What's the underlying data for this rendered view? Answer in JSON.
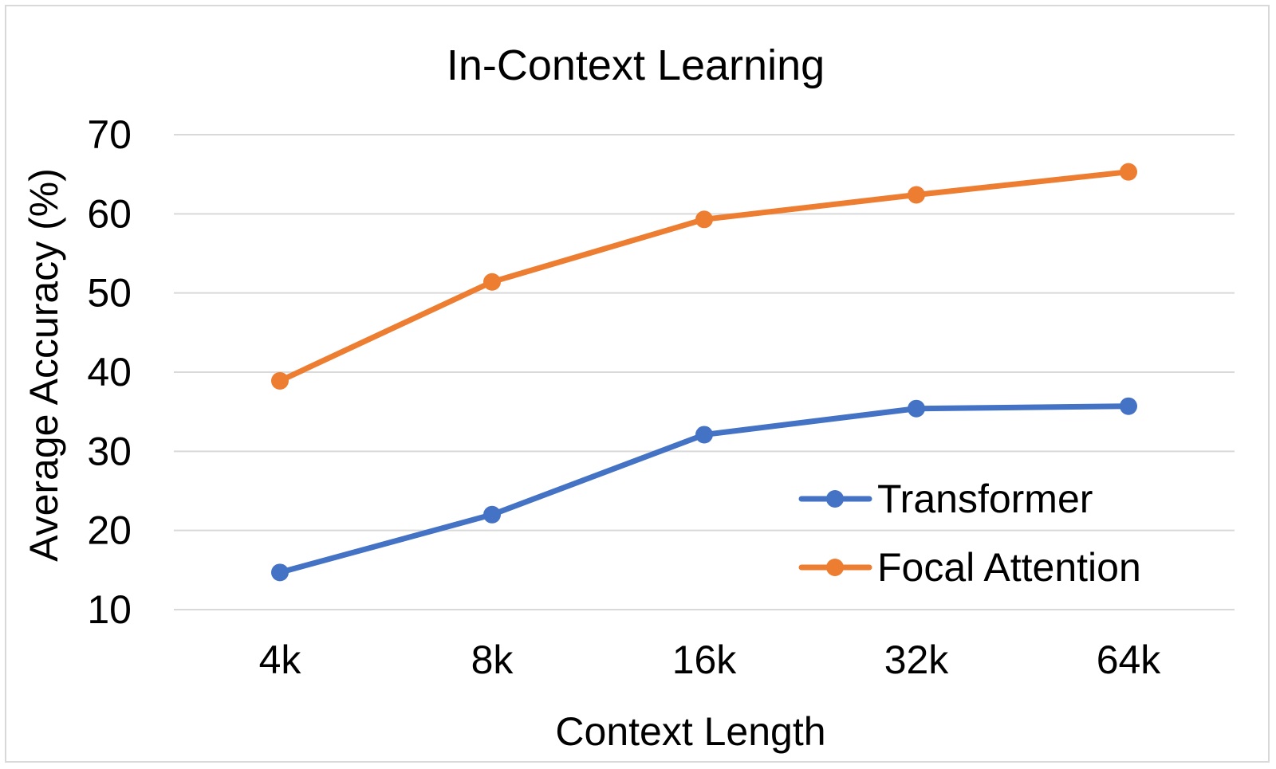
{
  "chart_data": {
    "type": "line",
    "title": "In-Context Learning",
    "xlabel": "Context Length",
    "ylabel": "Average Accuracy (%)",
    "categories": [
      "4k",
      "8k",
      "16k",
      "32k",
      "64k"
    ],
    "ylim": [
      10,
      70
    ],
    "yticks": [
      10,
      20,
      30,
      40,
      50,
      60,
      70
    ],
    "grid": true,
    "legend_position": "bottom-right",
    "series": [
      {
        "name": "Transformer",
        "color": "#4472c4",
        "values": [
          14.7,
          22.0,
          32.1,
          35.4,
          35.7
        ]
      },
      {
        "name": "Focal Attention",
        "color": "#ed7d31",
        "values": [
          38.9,
          51.4,
          59.3,
          62.4,
          65.3
        ]
      }
    ]
  }
}
